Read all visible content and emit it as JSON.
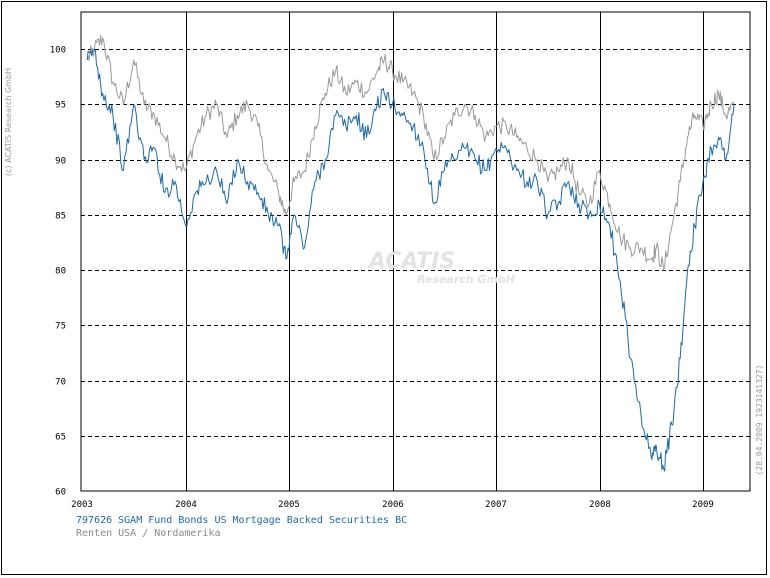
{
  "copyright": "(c) ACATIS Research GmbH",
  "stamp": "(28.04.2009 1923141327)",
  "watermark": {
    "line1": "ACATIS",
    "line2": "Research GmbH"
  },
  "legend": {
    "fund": "797626 SGAM Fund Bonds US Mortgage Backed Securities BC",
    "benchmark": "Renten USA / Nordamerika"
  },
  "chart_data": {
    "type": "line",
    "title": "797626 SGAM Fund Bonds US Mortgage Backed Securities BC",
    "xlabel": "",
    "ylabel": "",
    "xlim": [
      2003.0,
      2009.4
    ],
    "ylim": [
      60,
      102
    ],
    "y_ticks": [
      60,
      65,
      70,
      75,
      80,
      85,
      90,
      95,
      100
    ],
    "x_ticks": [
      2003,
      2004,
      2005,
      2006,
      2007,
      2008,
      2009
    ],
    "grid": true,
    "series": [
      {
        "name": "797626 SGAM Fund Bonds US Mortgage Backed Securities BC",
        "color": "#1f6aa5",
        "x": [
          2003.05,
          2003.12,
          2003.2,
          2003.3,
          2003.4,
          2003.5,
          2003.6,
          2003.7,
          2003.8,
          2003.9,
          2004.0,
          2004.1,
          2004.2,
          2004.3,
          2004.4,
          2004.5,
          2004.6,
          2004.7,
          2004.8,
          2004.9,
          2004.97,
          2005.05,
          2005.15,
          2005.25,
          2005.35,
          2005.45,
          2005.55,
          2005.65,
          2005.75,
          2005.85,
          2005.92,
          2006.0,
          2006.1,
          2006.2,
          2006.3,
          2006.4,
          2006.5,
          2006.6,
          2006.7,
          2006.8,
          2006.9,
          2007.0,
          2007.1,
          2007.2,
          2007.3,
          2007.4,
          2007.5,
          2007.6,
          2007.7,
          2007.8,
          2007.9,
          2008.0,
          2008.1,
          2008.2,
          2008.3,
          2008.4,
          2008.5,
          2008.55,
          2008.62,
          2008.7,
          2008.78,
          2008.85,
          2008.92,
          2009.0,
          2009.08,
          2009.15,
          2009.22,
          2009.3
        ],
        "values": [
          99,
          100,
          96,
          94,
          89,
          95,
          90,
          91,
          87,
          88,
          84,
          87,
          88,
          89,
          86,
          90,
          88,
          87,
          85,
          84,
          81,
          85,
          82,
          88,
          90,
          94,
          93,
          94,
          92,
          95,
          96,
          95,
          94,
          93,
          91,
          86,
          89,
          90,
          91,
          90,
          89,
          91,
          91,
          89,
          88,
          88,
          85,
          86,
          88,
          86,
          85,
          86,
          84,
          79,
          72,
          67,
          63,
          64,
          62,
          66,
          72,
          80,
          84,
          88,
          91,
          92,
          90,
          95
        ]
      },
      {
        "name": "Renten USA / Nordamerika",
        "color": "#9a9a9a",
        "x": [
          2003.05,
          2003.12,
          2003.2,
          2003.3,
          2003.4,
          2003.5,
          2003.6,
          2003.7,
          2003.8,
          2003.9,
          2004.0,
          2004.1,
          2004.2,
          2004.3,
          2004.4,
          2004.5,
          2004.6,
          2004.7,
          2004.8,
          2004.9,
          2004.97,
          2005.05,
          2005.15,
          2005.25,
          2005.35,
          2005.45,
          2005.55,
          2005.65,
          2005.75,
          2005.85,
          2005.92,
          2006.0,
          2006.1,
          2006.2,
          2006.3,
          2006.4,
          2006.5,
          2006.6,
          2006.7,
          2006.8,
          2006.9,
          2007.0,
          2007.1,
          2007.2,
          2007.3,
          2007.4,
          2007.5,
          2007.6,
          2007.7,
          2007.8,
          2007.9,
          2008.0,
          2008.1,
          2008.2,
          2008.3,
          2008.4,
          2008.5,
          2008.55,
          2008.62,
          2008.7,
          2008.78,
          2008.85,
          2008.92,
          2009.0,
          2009.08,
          2009.15,
          2009.22,
          2009.3
        ],
        "values": [
          99,
          100,
          101,
          97,
          95,
          99,
          95,
          94,
          92,
          90,
          89,
          92,
          94,
          95,
          92,
          94,
          95,
          93,
          89,
          87,
          85,
          88,
          89,
          93,
          96,
          98,
          96,
          97,
          96,
          98,
          99,
          98,
          97,
          96,
          94,
          90,
          92,
          94,
          95,
          94,
          92,
          93,
          93,
          92,
          91,
          90,
          88,
          89,
          90,
          87,
          86,
          89,
          86,
          83,
          82,
          82,
          81,
          82,
          80,
          84,
          88,
          92,
          94,
          93,
          95,
          96,
          94,
          95
        ]
      }
    ]
  }
}
